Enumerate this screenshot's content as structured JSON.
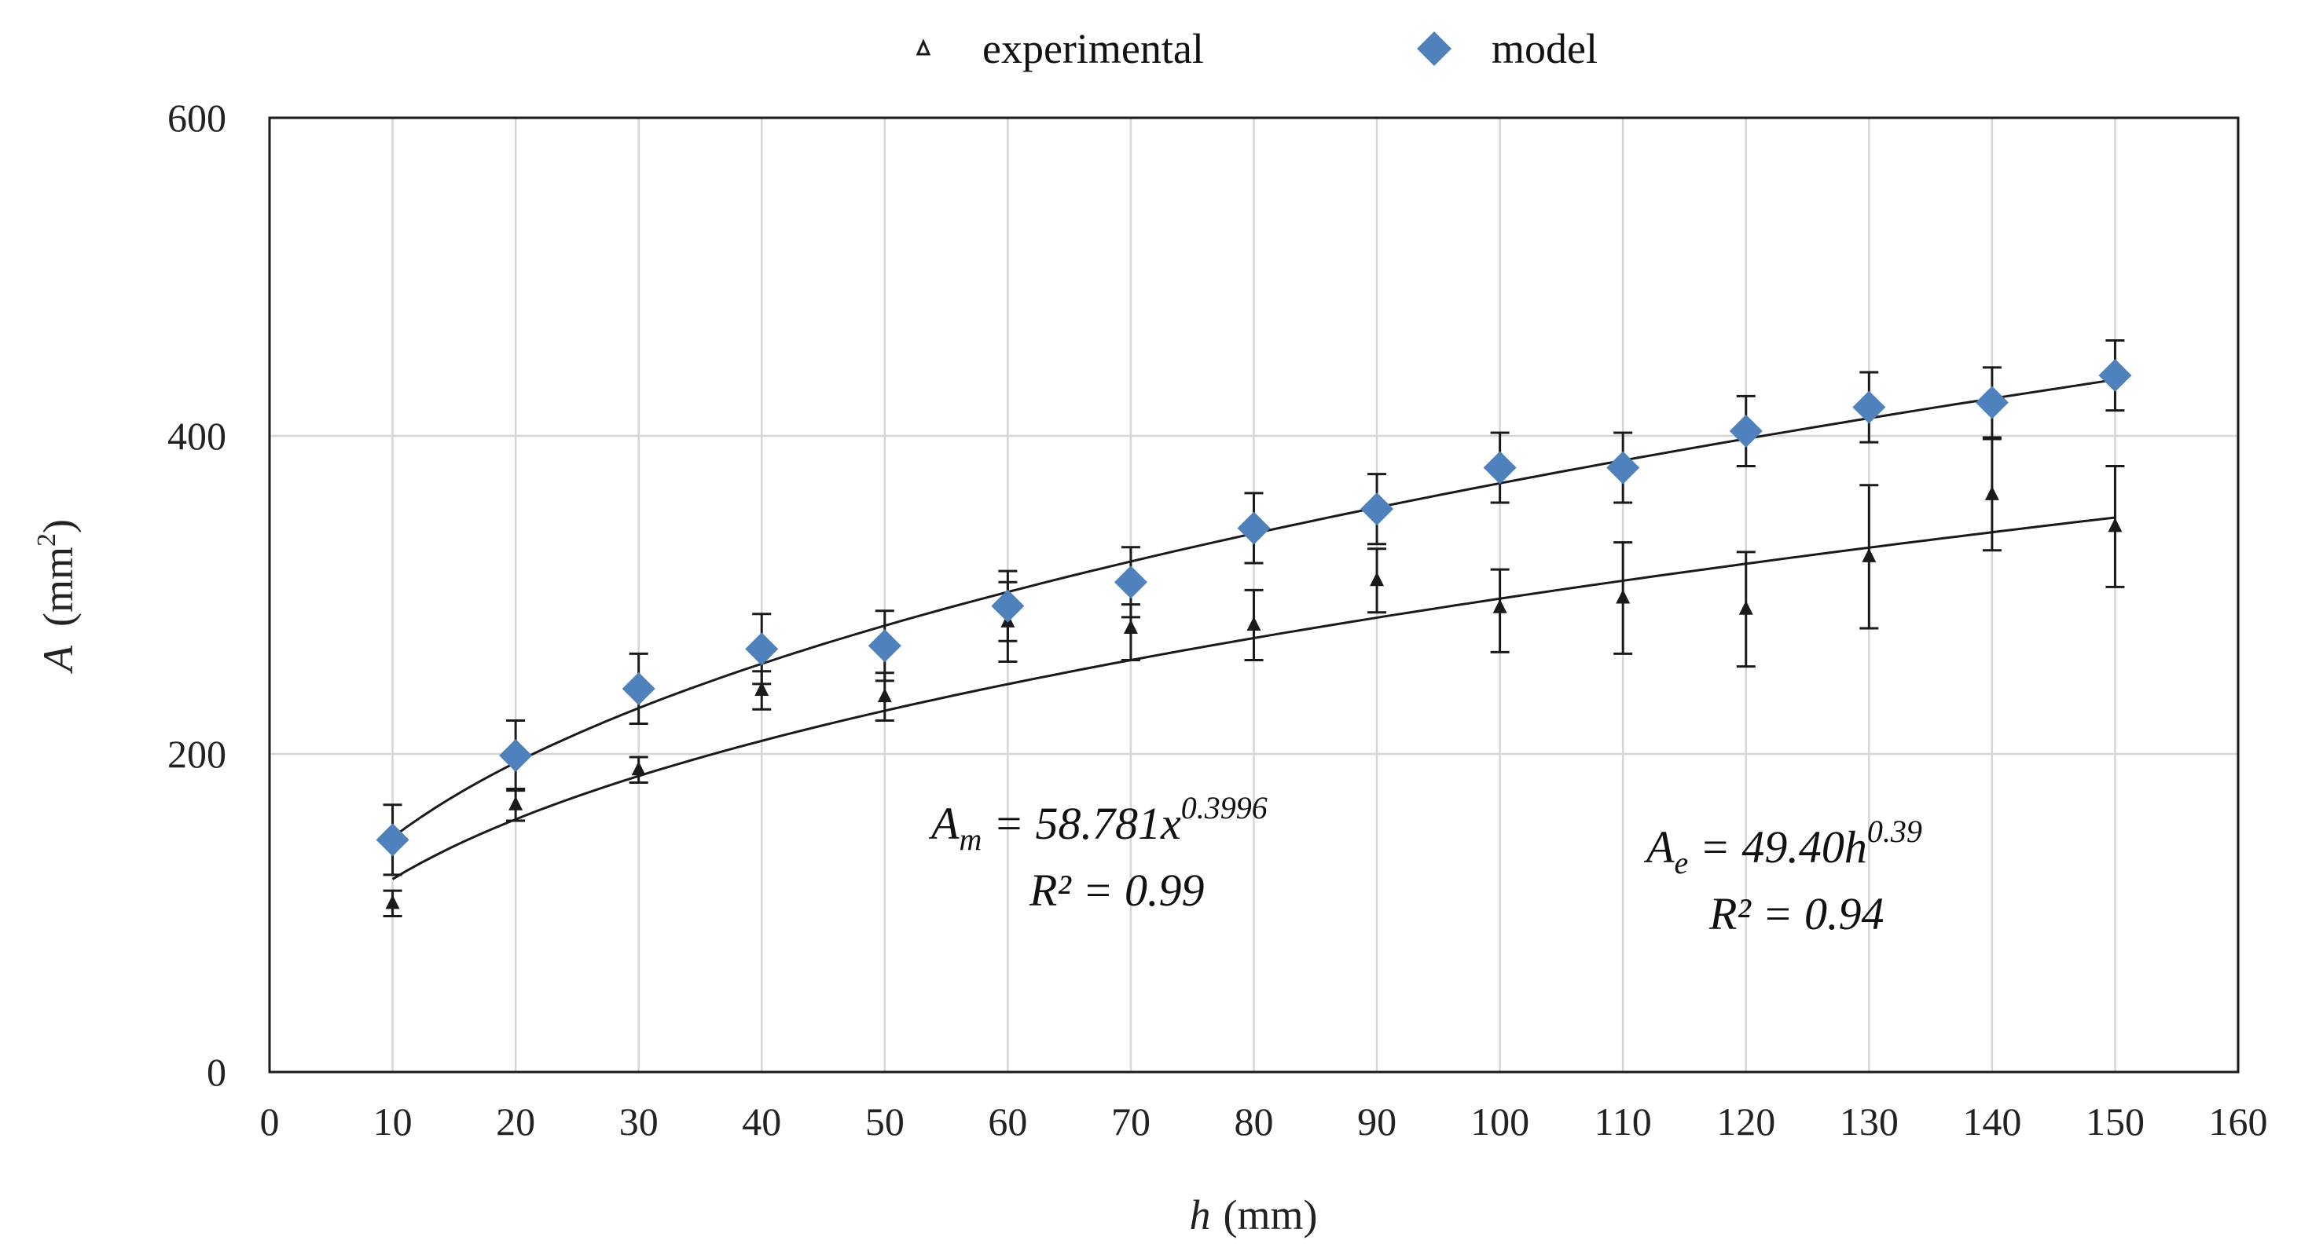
{
  "chart_data": {
    "type": "scatter",
    "title": "",
    "xlabel_var": "h",
    "xlabel_unit": "(mm)",
    "ylabel_var": "A",
    "ylabel_unit": "(mm",
    "ylabel_sup": "2",
    "ylabel_close": ")",
    "xlim": [
      0,
      160
    ],
    "ylim": [
      0,
      600
    ],
    "xticks": [
      0,
      10,
      20,
      30,
      40,
      50,
      60,
      70,
      80,
      90,
      100,
      110,
      120,
      130,
      140,
      150,
      160
    ],
    "yticks": [
      0,
      200,
      400,
      600
    ],
    "grid": true,
    "legend_position": "top-center",
    "series": [
      {
        "name": "experimental",
        "marker": "triangle",
        "color": "#1a1a1a",
        "x": [
          10,
          20,
          30,
          40,
          50,
          60,
          70,
          80,
          90,
          100,
          110,
          120,
          130,
          140,
          150
        ],
        "y": [
          106,
          168,
          190,
          240,
          236,
          283,
          279,
          281,
          309,
          292,
          298,
          291,
          324,
          363,
          343
        ],
        "err_upper": [
          8,
          10,
          8,
          12,
          15,
          25,
          15,
          22,
          20,
          24,
          35,
          36,
          45,
          35,
          38
        ],
        "err_lower": [
          8,
          10,
          8,
          12,
          15,
          25,
          20,
          22,
          20,
          28,
          35,
          36,
          45,
          35,
          38
        ],
        "fit": {
          "coef": 49.4,
          "exp": 0.39
        }
      },
      {
        "name": "model",
        "marker": "diamond",
        "color": "#4f81bd",
        "x": [
          10,
          20,
          30,
          40,
          50,
          60,
          70,
          80,
          90,
          100,
          110,
          120,
          130,
          140,
          150
        ],
        "y": [
          146,
          199,
          241,
          266,
          268,
          293,
          308,
          342,
          354,
          380,
          380,
          403,
          418,
          421,
          438
        ],
        "err_upper": [
          22,
          22,
          22,
          22,
          22,
          22,
          22,
          22,
          22,
          22,
          22,
          22,
          22,
          22,
          22
        ],
        "err_lower": [
          22,
          22,
          22,
          22,
          22,
          22,
          22,
          22,
          22,
          22,
          22,
          22,
          22,
          22,
          22
        ],
        "fit": {
          "coef": 58.781,
          "exp": 0.3996
        }
      }
    ],
    "annotations": {
      "model_eq_left": "A",
      "model_eq_sub": "m",
      "model_eq_mid": " = 58.781x",
      "model_eq_sup": "0.3996",
      "model_r2": "R² = 0.99",
      "exp_eq_left": "A",
      "exp_eq_sub": "e",
      "exp_eq_mid": " = 49.40h",
      "exp_eq_sup": "0.39",
      "exp_r2": "R² = 0.94"
    }
  }
}
